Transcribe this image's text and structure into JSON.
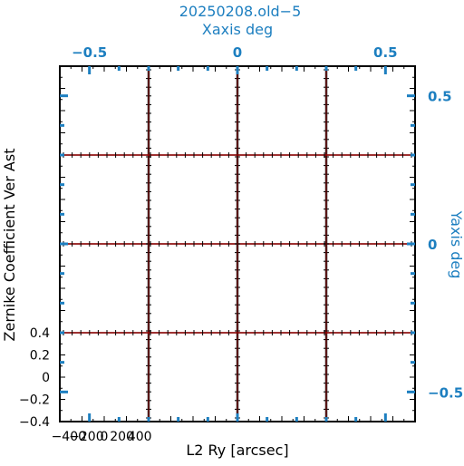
{
  "chart_data": {
    "type": "line",
    "title": "20250208.old−5",
    "top_axis": {
      "label": "Xaxis deg",
      "ticks": [
        {
          "value": -0.5,
          "label": "−0.5"
        },
        {
          "value": 0,
          "label": "0"
        },
        {
          "value": 0.5,
          "label": "0.5"
        }
      ],
      "range": [
        -0.6,
        0.6
      ]
    },
    "right_axis": {
      "label": "Yaxis deg",
      "ticks": [
        {
          "value": 0.5,
          "label": "0.5"
        },
        {
          "value": 0,
          "label": "0"
        },
        {
          "value": -0.5,
          "label": "−0.5"
        }
      ],
      "range": [
        -0.6,
        0.6
      ]
    },
    "xlabel": "L2 Ry [arcsec]",
    "ylabel": "Zernike Coefficient Ver Ast",
    "panel_x_ticks": [
      "−400",
      "−200",
      "0",
      "200",
      "400"
    ],
    "panel_x_values": [
      -400,
      -200,
      0,
      200,
      400
    ],
    "panel_y_ticks": [
      "0.4",
      "0.2",
      "0",
      "−0.2",
      "−0.4"
    ],
    "panel_y_values": [
      0.4,
      0.2,
      0,
      -0.2,
      -0.4
    ],
    "panel_xlim": [
      -500,
      500
    ],
    "panel_ylim": [
      -0.4,
      0.4
    ],
    "grid_rows": 4,
    "grid_cols": 4,
    "line_color": "#cc0000",
    "marker_color": "#000000",
    "accent_color": "#1d7fc0"
  }
}
